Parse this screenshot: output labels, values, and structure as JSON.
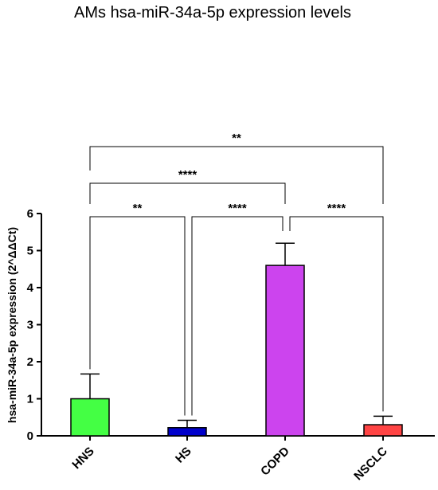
{
  "chart_data": {
    "type": "bar",
    "title": "AMs hsa-miR-34a-5p expression levels",
    "xlabel": "",
    "ylabel": "hsa-miR-34a-5p expression (2^ΔΔCt)",
    "categories": [
      "HNS",
      "HS",
      "COPD",
      "NSCLC"
    ],
    "values": [
      1.0,
      0.22,
      4.6,
      0.3
    ],
    "errors": [
      0.67,
      0.2,
      0.6,
      0.23
    ],
    "colors": [
      "#44ff44",
      "#0000cc",
      "#cc44ee",
      "#ff4444"
    ],
    "ylim": [
      0,
      6
    ],
    "yticks": [
      "0",
      "1",
      "2",
      "3",
      "4",
      "5",
      "6"
    ],
    "grid": false,
    "significance": [
      {
        "from": "HNS",
        "to": "HS",
        "label": "**"
      },
      {
        "from": "HS",
        "to": "COPD",
        "label": "****"
      },
      {
        "from": "COPD",
        "to": "NSCLC",
        "label": "****"
      },
      {
        "from": "HNS",
        "to": "COPD",
        "label": "****"
      },
      {
        "from": "HNS",
        "to": "NSCLC",
        "label": "**"
      }
    ]
  }
}
